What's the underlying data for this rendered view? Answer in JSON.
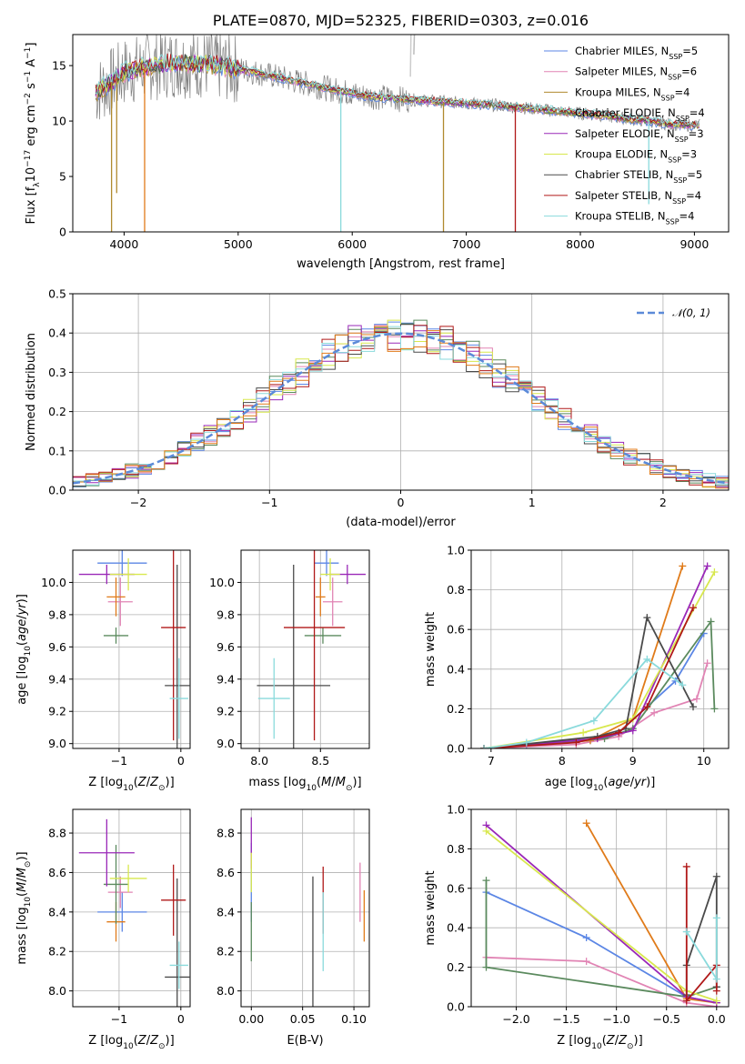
{
  "title": "PLATE=0870, MJD=52325, FIBERID=0303, z=0.016",
  "colors": {
    "Chabrier MILES": "#5b86e5",
    "Salpeter MILES": "#e184b4",
    "Kroupa MILES": "#b08a2e",
    "Chabrier ELODIE": "#5b8a5e",
    "Salpeter ELODIE": "#9a28b8",
    "Kroupa ELODIE": "#d8e84e",
    "Chabrier STELIB": "#4a4a4a",
    "Salpeter STELIB": "#b01818",
    "Kroupa STELIB": "#8adadc",
    "orange": "#e07b1a",
    "data": "#808080",
    "gaussian": "#5b8ad8"
  },
  "legend_top": [
    {
      "base": "Chabrier MILES, N",
      "sub": "SSP",
      "val": "=5",
      "color": "#5b86e5"
    },
    {
      "base": "Salpeter MILES, N",
      "sub": "SSP",
      "val": "=6",
      "color": "#e184b4"
    },
    {
      "base": "Kroupa MILES, N",
      "sub": "SSP",
      "val": "=4",
      "color": "#b08a2e"
    },
    {
      "base": "Chabrier ELODIE, N",
      "sub": "SSP",
      "val": "=4",
      "color": "#5b8a5e"
    },
    {
      "base": "Salpeter ELODIE, N",
      "sub": "SSP",
      "val": "=3",
      "color": "#9a28b8"
    },
    {
      "base": "Kroupa ELODIE, N",
      "sub": "SSP",
      "val": "=3",
      "color": "#d8e84e"
    },
    {
      "base": "Chabrier STELIB, N",
      "sub": "SSP",
      "val": "=5",
      "color": "#4a4a4a"
    },
    {
      "base": "Salpeter STELIB, N",
      "sub": "SSP",
      "val": "=4",
      "color": "#b01818"
    },
    {
      "base": "Kroupa STELIB, N",
      "sub": "SSP",
      "val": "=4",
      "color": "#8adadc"
    }
  ],
  "chart_data": [
    {
      "type": "line",
      "title": "PLATE=0870, MJD=52325, FIBERID=0303, z=0.016",
      "xlabel": "wavelength [Angstrom, rest frame]",
      "ylabel": "Flux [fλ10⁻¹⁷ erg cm⁻² s⁻¹ A⁻¹]",
      "xlim": [
        3550,
        9300
      ],
      "ylim": [
        0,
        17.8
      ],
      "xticks": [
        4000,
        5000,
        6000,
        7000,
        8000,
        9000
      ],
      "yticks": [
        0,
        5,
        10,
        15
      ],
      "continuum_x": [
        3750,
        3900,
        4000,
        4200,
        4400,
        4600,
        4800,
        5000,
        5200,
        5500,
        5800,
        6100,
        6400,
        6700,
        7000,
        7300,
        7600,
        7800,
        8000,
        8200,
        8400,
        8600,
        8800,
        9050
      ],
      "continuum_y": [
        12.6,
        13.6,
        14.4,
        14.9,
        15.2,
        15.2,
        15.0,
        14.7,
        14.3,
        13.6,
        12.9,
        12.3,
        12.0,
        11.8,
        11.6,
        11.4,
        11.1,
        10.9,
        10.7,
        10.5,
        10.2,
        10.0,
        9.7,
        9.6
      ],
      "dips": [
        [
          3890,
          0
        ],
        [
          3935,
          3.5
        ],
        [
          4180,
          0
        ],
        [
          5900,
          0
        ],
        [
          6800,
          0
        ],
        [
          7430,
          0
        ],
        [
          8600,
          2.5
        ]
      ],
      "series": [
        {
          "name": "Chabrier MILES, NSSP=5"
        },
        {
          "name": "Salpeter MILES, NSSP=6"
        },
        {
          "name": "Kroupa MILES, NSSP=4"
        },
        {
          "name": "Chabrier ELODIE, NSSP=4"
        },
        {
          "name": "Salpeter ELODIE, NSSP=3"
        },
        {
          "name": "Kroupa ELODIE, NSSP=3"
        },
        {
          "name": "Chabrier STELIB, NSSP=5"
        },
        {
          "name": "Salpeter STELIB, NSSP=4"
        },
        {
          "name": "Kroupa STELIB, NSSP=4"
        }
      ]
    },
    {
      "type": "line",
      "xlabel": "(data-model)/error",
      "ylabel": "Normed distribution",
      "xlim": [
        -2.5,
        2.5
      ],
      "ylim": [
        0,
        0.5
      ],
      "xticks": [
        -2,
        -1,
        0,
        1,
        2
      ],
      "yticks": [
        0.0,
        0.1,
        0.2,
        0.3,
        0.4,
        0.5
      ],
      "bin_width": 0.1,
      "gaussian_label": "𝒩(0, 1)",
      "grid": true
    },
    {
      "type": "scatter",
      "xlabel": "Z [log10(Z/Z⊙)]",
      "ylabel": "age [log10(age/yr)]",
      "xlim": [
        -1.75,
        0.15
      ],
      "ylim": [
        8.97,
        10.2
      ],
      "xticks": [
        -1,
        0
      ],
      "yticks": [
        9.0,
        9.2,
        9.4,
        9.6,
        9.8,
        10.0
      ],
      "points": [
        {
          "x": -0.95,
          "y": 10.12,
          "xerr": 0.4,
          "yerr": 0.08
        },
        {
          "x": -0.98,
          "y": 9.88,
          "xerr": 0.2,
          "yerr": 0.15
        },
        {
          "x": -1.05,
          "y": 9.91,
          "xerr": 0.15,
          "yerr": 0.12
        },
        {
          "x": -1.05,
          "y": 9.67,
          "xerr": 0.2,
          "yerr": 0.05
        },
        {
          "x": -1.2,
          "y": 10.05,
          "xerr": 0.45,
          "yerr": 0.06
        },
        {
          "x": -0.85,
          "y": 10.05,
          "xerr": 0.3,
          "yerr": 0.1
        },
        {
          "x": -0.06,
          "y": 9.36,
          "xerr": 0.2,
          "yerr": 0.75
        },
        {
          "x": -0.12,
          "y": 9.72,
          "xerr": 0.2,
          "yerr": 0.7
        },
        {
          "x": -0.03,
          "y": 9.28,
          "xerr": 0.15,
          "yerr": 0.25
        }
      ]
    },
    {
      "type": "scatter",
      "xlabel": "mass [log10(M/M⊙)]",
      "xlim": [
        7.85,
        8.9
      ],
      "ylim": [
        8.97,
        10.2
      ],
      "xticks": [
        8.0,
        8.5
      ],
      "yticks": [
        9.0,
        9.2,
        9.4,
        9.6,
        9.8,
        10.0
      ]
    },
    {
      "type": "line",
      "xlabel": "age [log10(age/yr)]",
      "ylabel": "mass weight",
      "xlim": [
        6.72,
        10.35
      ],
      "ylim": [
        0,
        1
      ],
      "xticks": [
        7,
        8,
        9,
        10
      ],
      "yticks": [
        0.0,
        0.2,
        0.4,
        0.6,
        0.8,
        1.0
      ],
      "series": [
        {
          "x": [
            6.9,
            7.5,
            8.4,
            8.8,
            9.6,
            10.0
          ],
          "y": [
            0.0,
            0.02,
            0.04,
            0.08,
            0.34,
            0.58
          ]
        },
        {
          "x": [
            6.9,
            8.2,
            8.8,
            9.3,
            9.9,
            10.05
          ],
          "y": [
            0.0,
            0.02,
            0.06,
            0.18,
            0.25,
            0.43
          ]
        },
        {
          "x": [
            6.9,
            8.4,
            9.0,
            9.7
          ],
          "y": [
            0.0,
            0.04,
            0.15,
            0.92
          ]
        },
        {
          "x": [
            6.9,
            8.6,
            9.0,
            10.1,
            10.15
          ],
          "y": [
            0.0,
            0.05,
            0.1,
            0.64,
            0.2
          ]
        },
        {
          "x": [
            6.9,
            8.5,
            9.0,
            10.05
          ],
          "y": [
            0.0,
            0.05,
            0.09,
            0.92
          ]
        },
        {
          "x": [
            6.9,
            8.3,
            9.0,
            10.15
          ],
          "y": [
            0.0,
            0.08,
            0.15,
            0.89
          ]
        },
        {
          "x": [
            6.9,
            8.5,
            8.9,
            9.2,
            9.85
          ],
          "y": [
            0.0,
            0.06,
            0.1,
            0.66,
            0.21
          ]
        },
        {
          "x": [
            6.9,
            8.2,
            8.8,
            9.2,
            9.85
          ],
          "y": [
            0.0,
            0.03,
            0.08,
            0.21,
            0.71
          ]
        },
        {
          "x": [
            6.9,
            7.5,
            8.45,
            9.2,
            9.7
          ],
          "y": [
            0.0,
            0.03,
            0.14,
            0.45,
            0.32
          ]
        }
      ]
    },
    {
      "type": "scatter",
      "xlabel": "Z [log10(Z/Z⊙)]",
      "ylabel": "mass [log10(M/M⊙)]",
      "xlim": [
        -1.75,
        0.15
      ],
      "ylim": [
        7.92,
        8.92
      ],
      "xticks": [
        -1,
        0
      ],
      "yticks": [
        8.0,
        8.2,
        8.4,
        8.6,
        8.8
      ]
    },
    {
      "type": "scatter",
      "xlabel": "E(B-V)",
      "xlim": [
        -0.01,
        0.115
      ],
      "ylim": [
        7.92,
        8.92
      ],
      "xticks": [
        0.0,
        0.05,
        0.1
      ],
      "yticks": [
        8.0,
        8.2,
        8.4,
        8.6,
        8.8
      ]
    },
    {
      "type": "line",
      "xlabel": "Z [log10(Z/Z⊙)]",
      "ylabel": "mass weight",
      "xlim": [
        -2.45,
        0.12
      ],
      "ylim": [
        0,
        1
      ],
      "xticks": [
        -2.0,
        -1.5,
        -1.0,
        -0.5,
        0.0
      ],
      "yticks": [
        0.0,
        0.2,
        0.4,
        0.6,
        0.8,
        1.0
      ],
      "series": [
        {
          "x": [
            -2.3,
            -1.3,
            -0.3,
            0.0
          ],
          "y": [
            0.58,
            0.35,
            0.05,
            0.02
          ]
        },
        {
          "x": [
            -2.3,
            -1.3,
            -0.3,
            0.0
          ],
          "y": [
            0.25,
            0.23,
            0.02,
            0.0
          ]
        },
        {
          "x": [
            -1.3,
            -0.3,
            0.0
          ],
          "y": [
            0.93,
            0.04,
            0.02
          ]
        },
        {
          "x": [
            -2.3,
            -2.3,
            -0.3,
            0.0
          ],
          "y": [
            0.64,
            0.2,
            0.05,
            0.1
          ]
        },
        {
          "x": [
            -2.3,
            -0.3,
            0.0
          ],
          "y": [
            0.92,
            0.05,
            0.02
          ]
        },
        {
          "x": [
            -2.3,
            -0.3,
            0.0
          ],
          "y": [
            0.89,
            0.08,
            0.03
          ]
        },
        {
          "x": [
            -0.3,
            -0.3,
            0.0,
            0.0
          ],
          "y": [
            0.06,
            0.21,
            0.66,
            0.1
          ]
        },
        {
          "x": [
            -0.3,
            -0.3,
            0.0,
            0.0
          ],
          "y": [
            0.71,
            0.03,
            0.21,
            0.08
          ]
        },
        {
          "x": [
            -0.3,
            0.0,
            0.0
          ],
          "y": [
            0.38,
            0.14,
            0.45
          ]
        }
      ]
    }
  ]
}
